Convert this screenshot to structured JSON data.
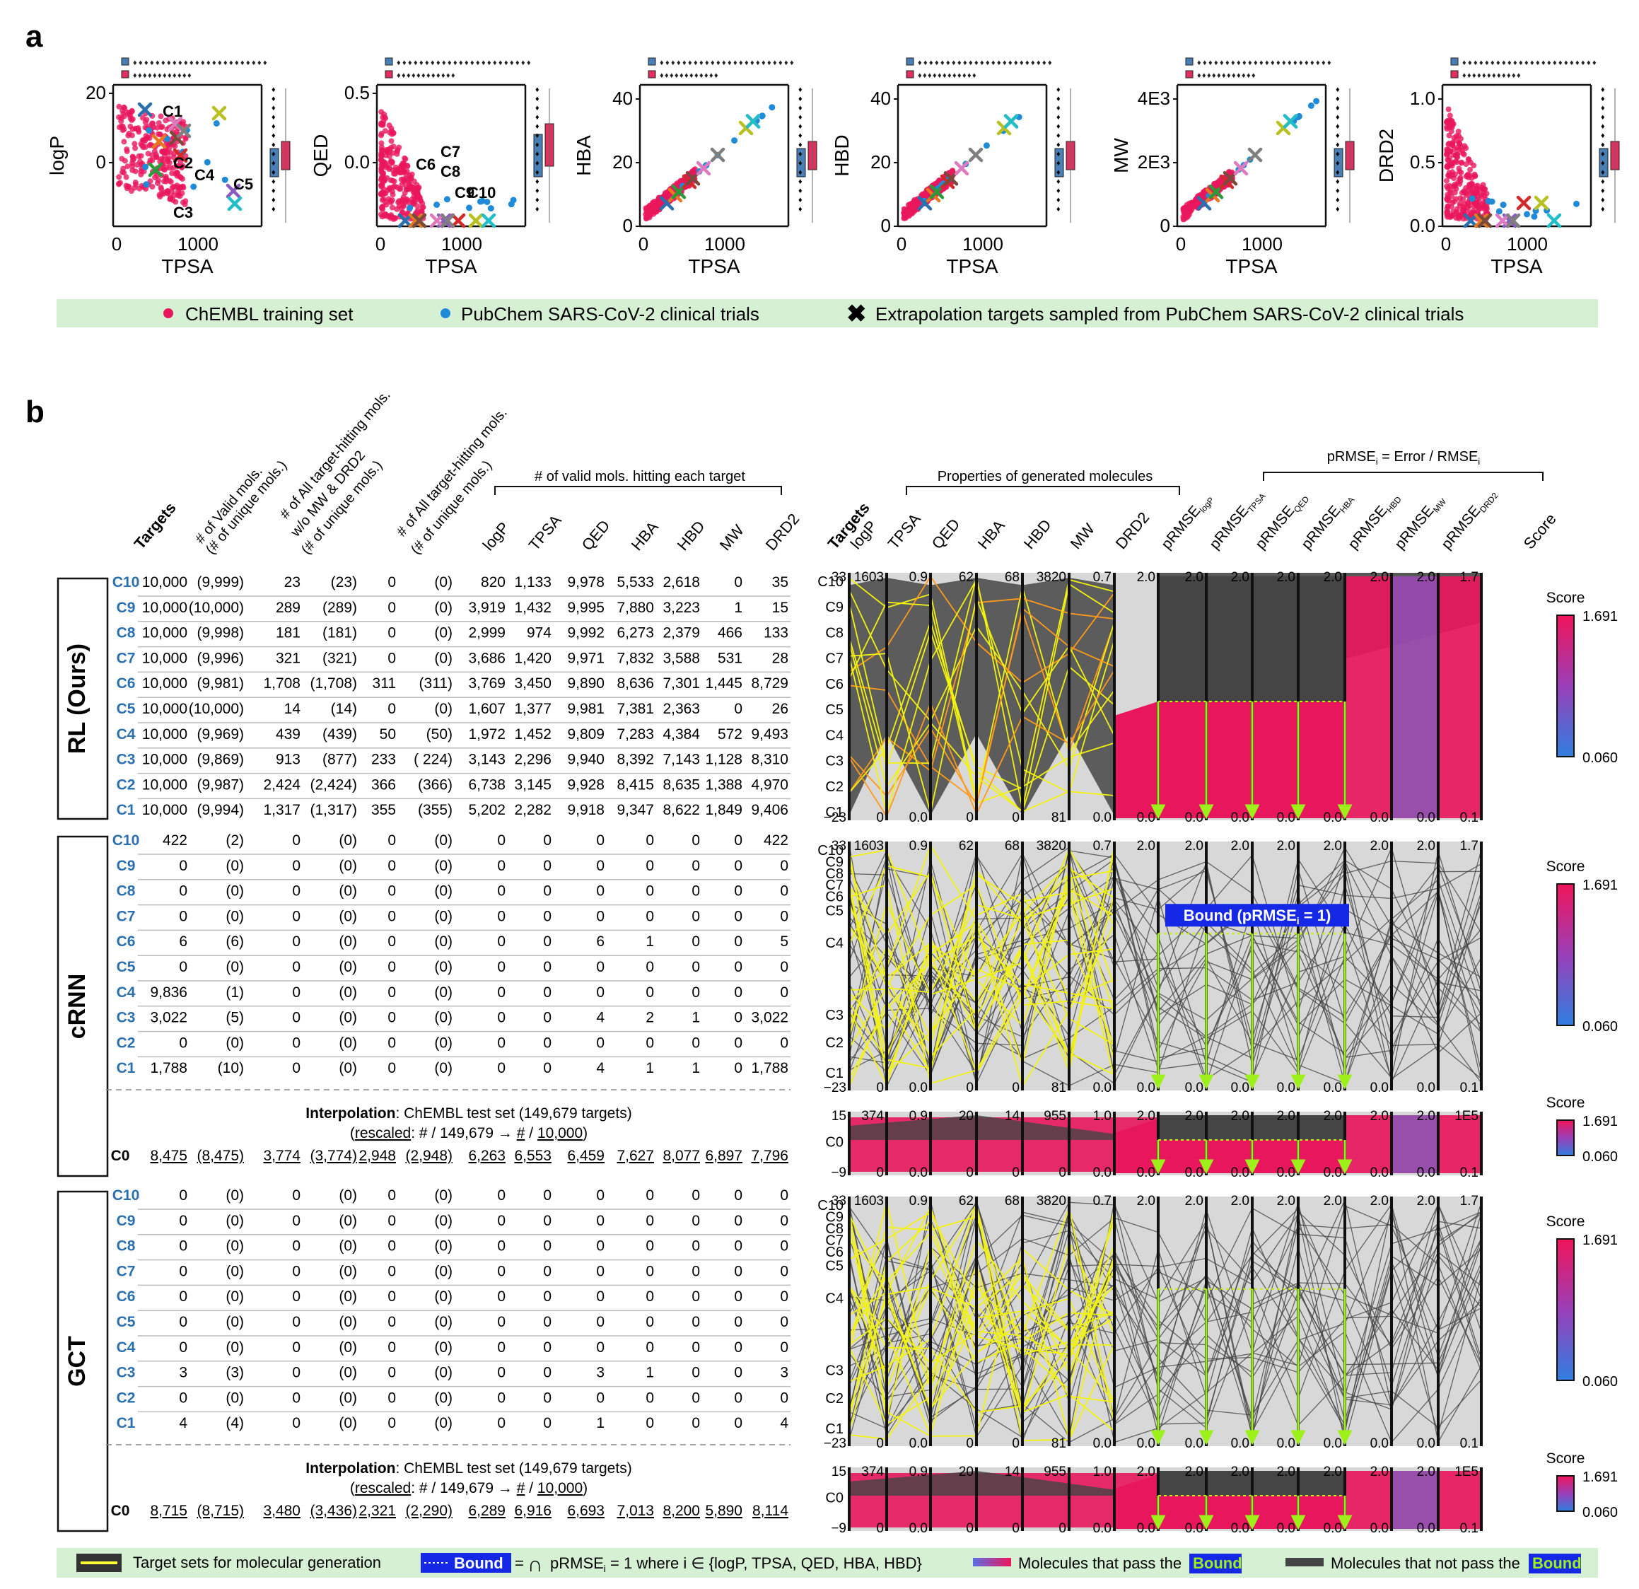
{
  "panel_labels": {
    "a": "a",
    "b": "b"
  },
  "panel_a": {
    "legend": {
      "training": "ChEMBL training set",
      "clinical": "PubChem SARS-CoV-2 clinical trials",
      "targets": "Extrapolation targets sampled from PubChem SARS-CoV-2 clinical trials"
    },
    "xlabel": "TPSA"
  },
  "panel_b": {
    "headers": {
      "targets": "Targets",
      "valid": "# of Valid mols.",
      "valid_sub": "(# of unique mols.)",
      "all_hit_1": "# of All target-hitting mols.",
      "all_hit_2": "w/o MW & DRD2",
      "all_hit_3": "(# of unique mols.)",
      "all_hit_b1": "# of All target-hitting mols.",
      "all_hit_b2": "(# of unique mols.)",
      "each_group": "# of valid mols. hitting each target",
      "each": [
        "logP",
        "TPSA",
        "QED",
        "HBA",
        "HBD",
        "MW",
        "DRD2"
      ],
      "props_group": "Properties of generated molecules",
      "props": [
        "Targets",
        "logP",
        "TPSA",
        "QED",
        "HBA",
        "HBD",
        "MW",
        "DRD2"
      ],
      "prmse_group": "pRMSE",
      "prmse_group_sub": "i",
      "prmse_group_rest": " = Error / RMSE",
      "prmse_prefix": "pRMSE",
      "prmse_subs": [
        "logP",
        "TPSA",
        "QED",
        "HBA",
        "HBD",
        "MW",
        "DRD2"
      ],
      "score": "Score"
    },
    "models": [
      {
        "name": "RL (Ours)",
        "rows": [
          {
            "t": "C10",
            "v": "10,000",
            "vu": "(9,999)",
            "a": "23",
            "au": "(23)",
            "b": "0",
            "bu": "(0)",
            "e": [
              "820",
              "1,133",
              "9,978",
              "5,533",
              "2,618",
              "0",
              "35"
            ]
          },
          {
            "t": "C9",
            "v": "10,000",
            "vu": "(10,000)",
            "a": "289",
            "au": "(289)",
            "b": "0",
            "bu": "(0)",
            "e": [
              "3,919",
              "1,432",
              "9,995",
              "7,880",
              "3,223",
              "1",
              "15"
            ]
          },
          {
            "t": "C8",
            "v": "10,000",
            "vu": "(9,998)",
            "a": "181",
            "au": "(181)",
            "b": "0",
            "bu": "(0)",
            "e": [
              "2,999",
              "974",
              "9,992",
              "6,273",
              "2,379",
              "466",
              "133"
            ]
          },
          {
            "t": "C7",
            "v": "10,000",
            "vu": "(9,996)",
            "a": "321",
            "au": "(321)",
            "b": "0",
            "bu": "(0)",
            "e": [
              "3,686",
              "1,420",
              "9,971",
              "7,832",
              "3,588",
              "531",
              "28"
            ]
          },
          {
            "t": "C6",
            "v": "10,000",
            "vu": "(9,981)",
            "a": "1,708",
            "au": "(1,708)",
            "b": "311",
            "bu": "(311)",
            "e": [
              "3,769",
              "3,450",
              "9,890",
              "8,636",
              "7,301",
              "1,445",
              "8,729"
            ]
          },
          {
            "t": "C5",
            "v": "10,000",
            "vu": "(10,000)",
            "a": "14",
            "au": "(14)",
            "b": "0",
            "bu": "(0)",
            "e": [
              "1,607",
              "1,377",
              "9,981",
              "7,381",
              "2,363",
              "0",
              "26"
            ]
          },
          {
            "t": "C4",
            "v": "10,000",
            "vu": "(9,969)",
            "a": "439",
            "au": "(439)",
            "b": "50",
            "bu": "(50)",
            "e": [
              "1,972",
              "1,452",
              "9,809",
              "7,283",
              "4,384",
              "572",
              "9,493"
            ]
          },
          {
            "t": "C3",
            "v": "10,000",
            "vu": "(9,869)",
            "a": "913",
            "au": "(877)",
            "b": "233",
            "bu": "( 224)",
            "e": [
              "3,143",
              "2,296",
              "9,940",
              "8,392",
              "7,143",
              "1,128",
              "8,310"
            ]
          },
          {
            "t": "C2",
            "v": "10,000",
            "vu": "(9,987)",
            "a": "2,424",
            "au": "(2,424)",
            "b": "366",
            "bu": "(366)",
            "e": [
              "6,738",
              "3,145",
              "9,928",
              "8,415",
              "8,635",
              "1,388",
              "4,970"
            ]
          },
          {
            "t": "C1",
            "v": "10,000",
            "vu": "(9,994)",
            "a": "1,317",
            "au": "(1,317)",
            "b": "355",
            "bu": "(355)",
            "e": [
              "5,202",
              "2,282",
              "9,918",
              "9,347",
              "8,622",
              "1,849",
              "9,406"
            ]
          }
        ]
      },
      {
        "name": "cRNN",
        "rows": [
          {
            "t": "C10",
            "v": "422",
            "vu": "(2)",
            "a": "0",
            "au": "(0)",
            "b": "0",
            "bu": "(0)",
            "e": [
              "0",
              "0",
              "0",
              "0",
              "0",
              "0",
              "422"
            ]
          },
          {
            "t": "C9",
            "v": "0",
            "vu": "(0)",
            "a": "0",
            "au": "(0)",
            "b": "0",
            "bu": "(0)",
            "e": [
              "0",
              "0",
              "0",
              "0",
              "0",
              "0",
              "0"
            ]
          },
          {
            "t": "C8",
            "v": "0",
            "vu": "(0)",
            "a": "0",
            "au": "(0)",
            "b": "0",
            "bu": "(0)",
            "e": [
              "0",
              "0",
              "0",
              "0",
              "0",
              "0",
              "0"
            ]
          },
          {
            "t": "C7",
            "v": "0",
            "vu": "(0)",
            "a": "0",
            "au": "(0)",
            "b": "0",
            "bu": "(0)",
            "e": [
              "0",
              "0",
              "0",
              "0",
              "0",
              "0",
              "0"
            ]
          },
          {
            "t": "C6",
            "v": "6",
            "vu": "(6)",
            "a": "0",
            "au": "(0)",
            "b": "0",
            "bu": "(0)",
            "e": [
              "0",
              "0",
              "6",
              "1",
              "0",
              "0",
              "5"
            ]
          },
          {
            "t": "C5",
            "v": "0",
            "vu": "(0)",
            "a": "0",
            "au": "(0)",
            "b": "0",
            "bu": "(0)",
            "e": [
              "0",
              "0",
              "0",
              "0",
              "0",
              "0",
              "0"
            ]
          },
          {
            "t": "C4",
            "v": "9,836",
            "vu": "(1)",
            "a": "0",
            "au": "(0)",
            "b": "0",
            "bu": "(0)",
            "e": [
              "0",
              "0",
              "0",
              "0",
              "0",
              "0",
              "0"
            ]
          },
          {
            "t": "C3",
            "v": "3,022",
            "vu": "(5)",
            "a": "0",
            "au": "(0)",
            "b": "0",
            "bu": "(0)",
            "e": [
              "0",
              "0",
              "4",
              "2",
              "1",
              "0",
              "3,022"
            ]
          },
          {
            "t": "C2",
            "v": "0",
            "vu": "(0)",
            "a": "0",
            "au": "(0)",
            "b": "0",
            "bu": "(0)",
            "e": [
              "0",
              "0",
              "0",
              "0",
              "0",
              "0",
              "0"
            ]
          },
          {
            "t": "C1",
            "v": "1,788",
            "vu": "(10)",
            "a": "0",
            "au": "(0)",
            "b": "0",
            "bu": "(0)",
            "e": [
              "0",
              "0",
              "4",
              "1",
              "1",
              "0",
              "1,788"
            ]
          }
        ],
        "interp": {
          "title_bold": "Interpolation",
          "title_rest": ": ChEMBL test set (149,679 targets)",
          "rescaled_open": "(",
          "rescaled_word": "rescaled",
          "rescaled_a": ": # / 149,679  →  ",
          "rescaled_b": "#",
          "rescaled_c": " / ",
          "rescaled_d": "10,000",
          "rescaled_close": ")",
          "c0": {
            "t": "C0",
            "v": "8,475",
            "vu": "(8,475)",
            "a": "3,774",
            "au": "(3,774)",
            "b": "2,948",
            "bu": "(2,948)",
            "e": [
              "6,263",
              "6,553",
              "6,459",
              "7,627",
              "8,077",
              "6,897",
              "7,796"
            ]
          }
        }
      },
      {
        "name": "GCT",
        "rows": [
          {
            "t": "C10",
            "v": "0",
            "vu": "(0)",
            "a": "0",
            "au": "(0)",
            "b": "0",
            "bu": "(0)",
            "e": [
              "0",
              "0",
              "0",
              "0",
              "0",
              "0",
              "0"
            ]
          },
          {
            "t": "C9",
            "v": "0",
            "vu": "(0)",
            "a": "0",
            "au": "(0)",
            "b": "0",
            "bu": "(0)",
            "e": [
              "0",
              "0",
              "0",
              "0",
              "0",
              "0",
              "0"
            ]
          },
          {
            "t": "C8",
            "v": "0",
            "vu": "(0)",
            "a": "0",
            "au": "(0)",
            "b": "0",
            "bu": "(0)",
            "e": [
              "0",
              "0",
              "0",
              "0",
              "0",
              "0",
              "0"
            ]
          },
          {
            "t": "C7",
            "v": "0",
            "vu": "(0)",
            "a": "0",
            "au": "(0)",
            "b": "0",
            "bu": "(0)",
            "e": [
              "0",
              "0",
              "0",
              "0",
              "0",
              "0",
              "0"
            ]
          },
          {
            "t": "C6",
            "v": "0",
            "vu": "(0)",
            "a": "0",
            "au": "(0)",
            "b": "0",
            "bu": "(0)",
            "e": [
              "0",
              "0",
              "0",
              "0",
              "0",
              "0",
              "0"
            ]
          },
          {
            "t": "C5",
            "v": "0",
            "vu": "(0)",
            "a": "0",
            "au": "(0)",
            "b": "0",
            "bu": "(0)",
            "e": [
              "0",
              "0",
              "0",
              "0",
              "0",
              "0",
              "0"
            ]
          },
          {
            "t": "C4",
            "v": "0",
            "vu": "(0)",
            "a": "0",
            "au": "(0)",
            "b": "0",
            "bu": "(0)",
            "e": [
              "0",
              "0",
              "0",
              "0",
              "0",
              "0",
              "0"
            ]
          },
          {
            "t": "C3",
            "v": "3",
            "vu": "(3)",
            "a": "0",
            "au": "(0)",
            "b": "0",
            "bu": "(0)",
            "e": [
              "0",
              "0",
              "3",
              "1",
              "0",
              "0",
              "3"
            ]
          },
          {
            "t": "C2",
            "v": "0",
            "vu": "(0)",
            "a": "0",
            "au": "(0)",
            "b": "0",
            "bu": "(0)",
            "e": [
              "0",
              "0",
              "0",
              "0",
              "0",
              "0",
              "0"
            ]
          },
          {
            "t": "C1",
            "v": "4",
            "vu": "(4)",
            "a": "0",
            "au": "(0)",
            "b": "0",
            "bu": "(0)",
            "e": [
              "0",
              "0",
              "1",
              "0",
              "0",
              "0",
              "4"
            ]
          }
        ],
        "interp": {
          "title_bold": "Interpolation",
          "title_rest": ": ChEMBL test set (149,679 targets)",
          "rescaled_open": "(",
          "rescaled_word": "rescaled",
          "rescaled_a": ": # / 149,679  →  ",
          "rescaled_b": "#",
          "rescaled_c": " / ",
          "rescaled_d": "10,000",
          "rescaled_close": ")",
          "c0": {
            "t": "C0",
            "v": "8,715",
            "vu": "(8,715)",
            "a": "3,480",
            "au": "(3,436)",
            "b": "2,321",
            "bu": "(2,290)",
            "e": [
              "6,289",
              "6,916",
              "6,693",
              "7,013",
              "8,200",
              "5,890",
              "8,114"
            ]
          }
        }
      }
    ],
    "parallel": {
      "target_labels": [
        "C10",
        "C9",
        "C8",
        "C7",
        "C6",
        "C5",
        "C4",
        "C3",
        "C2",
        "C1"
      ],
      "top_ticks": [
        "33",
        "1603",
        "0.9",
        "62",
        "68",
        "3820",
        "0.7",
        "2.0",
        "2.0",
        "2.0",
        "2.0",
        "2.0",
        "2.0",
        "2.0",
        "1.7"
      ],
      "bottom_ticks": [
        "−23",
        "0",
        "0.0",
        "0",
        "0",
        "81",
        "0.0",
        "0.0",
        "0.0",
        "0.0",
        "0.0",
        "0.0",
        "0.0",
        "0.0",
        "0.1"
      ],
      "c0_top_ticks": [
        "15",
        "374",
        "0.9",
        "20",
        "14",
        "955",
        "1.0",
        "2.0",
        "2.0",
        "2.0",
        "2.0",
        "2.0",
        "2.0",
        "2.0",
        "1E5"
      ],
      "c0_bottom_ticks": [
        "−9",
        "0",
        "0.0",
        "0",
        "0",
        "0",
        "0.0",
        "0.0",
        "0.0",
        "0.0",
        "0.0",
        "0.0",
        "0.0",
        "0.0",
        "0.1"
      ],
      "c0_label": "C0",
      "bound_label": "Bound (pRMSE",
      "bound_sub": "i",
      "bound_rest": " = 1)",
      "colorbar": {
        "title": "Score",
        "max": "1.691",
        "min": "0.060"
      }
    },
    "legend": {
      "target_sets": "Target sets for molecular generation",
      "bound": "Bound",
      "bound_eq": "=",
      "bound_formula": "pRMSE",
      "bound_formula_sub": "i",
      "bound_formula_rest": " = 1 where i ∈ {logP, TPSA, QED, HBA, HBD}",
      "pass": "Molecules that pass the",
      "notpass": "Molecules that not pass the",
      "bound_word": "Bound"
    }
  },
  "chart_data": [
    {
      "type": "scatter",
      "xlabel": "TPSA",
      "ylabel": "logP",
      "xticks": [
        "0",
        "1000"
      ],
      "yticks": [
        "20",
        "0"
      ],
      "annotations": [
        "C1",
        "C2",
        "C3",
        "C4",
        "C5"
      ],
      "targets": [
        {
          "name": "C1",
          "x": 280,
          "y": 9
        },
        {
          "name": "C2",
          "x": 480,
          "y": 0
        },
        {
          "name": "C3",
          "x": 450,
          "y": -8
        },
        {
          "name": "C4",
          "x": 800,
          "y": -5
        },
        {
          "name": "C5",
          "x": 1420,
          "y": -10
        }
      ]
    },
    {
      "type": "scatter",
      "xlabel": "TPSA",
      "ylabel": "QED",
      "xticks": [
        "0",
        "1000"
      ],
      "yticks": [
        "0.5",
        "0.0"
      ],
      "annotations": [
        "C6",
        "C8",
        "C7",
        "C9",
        "C10"
      ],
      "targets": [
        {
          "name": "C6",
          "x": 500,
          "y": 0.02
        },
        {
          "name": "C7",
          "x": 750,
          "y": 0.02
        },
        {
          "name": "C8",
          "x": 900,
          "y": 0.02
        },
        {
          "name": "C9",
          "x": 1300,
          "y": 0.01
        },
        {
          "name": "C10",
          "x": 1450,
          "y": 0.01
        }
      ]
    },
    {
      "type": "scatter",
      "xlabel": "TPSA",
      "ylabel": "HBA",
      "xticks": [
        "0",
        "1000"
      ],
      "yticks": [
        "40",
        "20",
        "0"
      ]
    },
    {
      "type": "scatter",
      "xlabel": "TPSA",
      "ylabel": "HBD",
      "xticks": [
        "0",
        "1000"
      ],
      "yticks": [
        "40",
        "20",
        "0"
      ]
    },
    {
      "type": "scatter",
      "xlabel": "TPSA",
      "ylabel": "MW",
      "xticks": [
        "0",
        "1000"
      ],
      "yticks": [
        "4E3",
        "2E3",
        "0"
      ]
    },
    {
      "type": "scatter",
      "xlabel": "TPSA",
      "ylabel": "DRD2",
      "xticks": [
        "0",
        "1000"
      ],
      "yticks": [
        "1.0",
        "0.5",
        "0.0"
      ]
    }
  ]
}
